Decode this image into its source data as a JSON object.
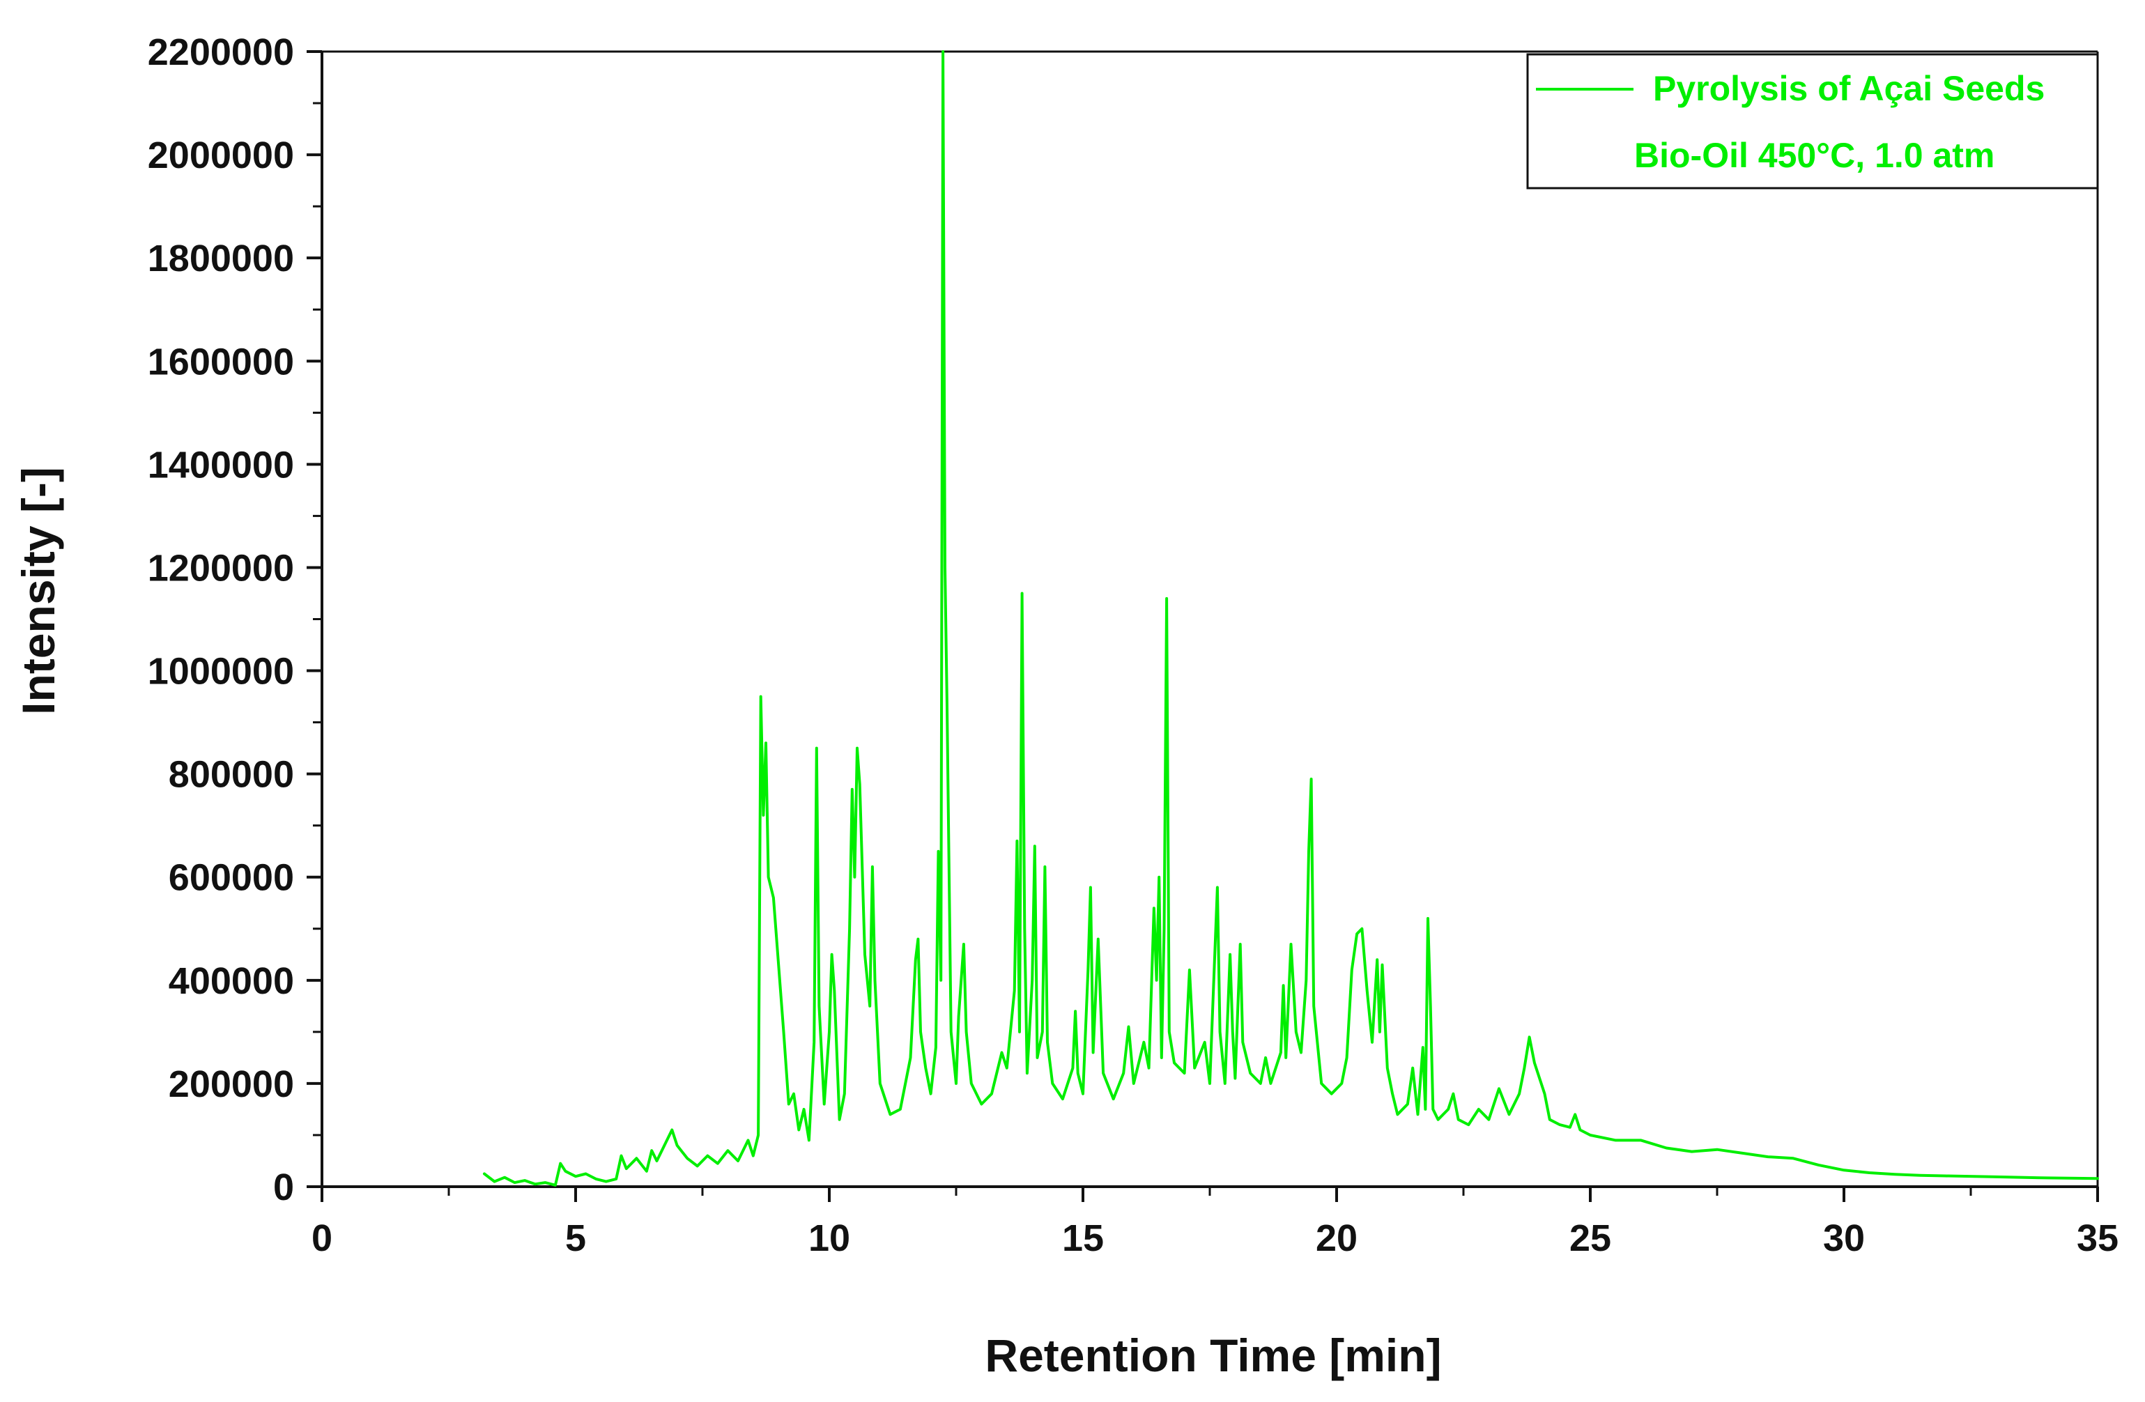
{
  "chart_data": {
    "type": "line",
    "title": "",
    "xlabel": "Retention Time [min]",
    "ylabel": "Intensity [-]",
    "xlim": [
      0,
      35
    ],
    "ylim": [
      0,
      2200000
    ],
    "x_ticks": [
      0,
      5,
      10,
      15,
      20,
      25,
      30,
      35
    ],
    "x_tick_labels": [
      "0",
      "5",
      "10",
      "15",
      "20",
      "25",
      "30",
      "35"
    ],
    "y_ticks": [
      0,
      200000,
      400000,
      600000,
      800000,
      1000000,
      1200000,
      1400000,
      1600000,
      1800000,
      2000000,
      2200000
    ],
    "y_tick_labels": [
      "0",
      "200000",
      "400000",
      "600000",
      "800000",
      "1000000",
      "1200000",
      "1400000",
      "1600000",
      "1800000",
      "2000000",
      "2200000"
    ],
    "grid": false,
    "legend_position": "top-right",
    "colors": {
      "series": "#00ee00",
      "axis": "#111111",
      "background": "#ffffff"
    },
    "series": [
      {
        "name": "Pyrolysis of Açai Seeds",
        "legend_subtitle": "Bio-Oil 450°C, 1.0 atm",
        "points": [
          [
            3.2,
            25000
          ],
          [
            3.4,
            10000
          ],
          [
            3.6,
            18000
          ],
          [
            3.8,
            8000
          ],
          [
            4.0,
            12000
          ],
          [
            4.2,
            5000
          ],
          [
            4.4,
            8000
          ],
          [
            4.6,
            3000
          ],
          [
            4.7,
            45000
          ],
          [
            4.8,
            30000
          ],
          [
            5.0,
            20000
          ],
          [
            5.2,
            25000
          ],
          [
            5.4,
            15000
          ],
          [
            5.6,
            10000
          ],
          [
            5.8,
            15000
          ],
          [
            5.9,
            60000
          ],
          [
            6.0,
            35000
          ],
          [
            6.2,
            55000
          ],
          [
            6.4,
            30000
          ],
          [
            6.5,
            70000
          ],
          [
            6.6,
            50000
          ],
          [
            6.8,
            90000
          ],
          [
            6.9,
            110000
          ],
          [
            7.0,
            80000
          ],
          [
            7.2,
            55000
          ],
          [
            7.4,
            40000
          ],
          [
            7.6,
            60000
          ],
          [
            7.8,
            45000
          ],
          [
            8.0,
            70000
          ],
          [
            8.2,
            50000
          ],
          [
            8.4,
            90000
          ],
          [
            8.5,
            60000
          ],
          [
            8.6,
            100000
          ],
          [
            8.65,
            950000
          ],
          [
            8.7,
            720000
          ],
          [
            8.75,
            860000
          ],
          [
            8.8,
            600000
          ],
          [
            8.9,
            560000
          ],
          [
            9.0,
            430000
          ],
          [
            9.1,
            300000
          ],
          [
            9.2,
            160000
          ],
          [
            9.3,
            180000
          ],
          [
            9.4,
            110000
          ],
          [
            9.5,
            150000
          ],
          [
            9.6,
            90000
          ],
          [
            9.7,
            280000
          ],
          [
            9.75,
            850000
          ],
          [
            9.8,
            350000
          ],
          [
            9.9,
            160000
          ],
          [
            10.0,
            300000
          ],
          [
            10.05,
            450000
          ],
          [
            10.1,
            380000
          ],
          [
            10.2,
            130000
          ],
          [
            10.3,
            180000
          ],
          [
            10.4,
            500000
          ],
          [
            10.45,
            770000
          ],
          [
            10.5,
            600000
          ],
          [
            10.55,
            850000
          ],
          [
            10.6,
            780000
          ],
          [
            10.7,
            450000
          ],
          [
            10.8,
            350000
          ],
          [
            10.85,
            620000
          ],
          [
            10.9,
            400000
          ],
          [
            11.0,
            200000
          ],
          [
            11.2,
            140000
          ],
          [
            11.4,
            150000
          ],
          [
            11.6,
            250000
          ],
          [
            11.7,
            440000
          ],
          [
            11.75,
            480000
          ],
          [
            11.8,
            300000
          ],
          [
            11.9,
            230000
          ],
          [
            12.0,
            180000
          ],
          [
            12.1,
            270000
          ],
          [
            12.15,
            650000
          ],
          [
            12.2,
            400000
          ],
          [
            12.24,
            2200000
          ],
          [
            12.28,
            1200000
          ],
          [
            12.32,
            940000
          ],
          [
            12.4,
            300000
          ],
          [
            12.5,
            200000
          ],
          [
            12.55,
            330000
          ],
          [
            12.65,
            470000
          ],
          [
            12.7,
            300000
          ],
          [
            12.8,
            200000
          ],
          [
            13.0,
            160000
          ],
          [
            13.2,
            180000
          ],
          [
            13.4,
            260000
          ],
          [
            13.5,
            230000
          ],
          [
            13.65,
            380000
          ],
          [
            13.7,
            670000
          ],
          [
            13.75,
            300000
          ],
          [
            13.8,
            1150000
          ],
          [
            13.85,
            500000
          ],
          [
            13.9,
            220000
          ],
          [
            14.0,
            400000
          ],
          [
            14.05,
            660000
          ],
          [
            14.1,
            250000
          ],
          [
            14.2,
            300000
          ],
          [
            14.25,
            620000
          ],
          [
            14.3,
            280000
          ],
          [
            14.4,
            200000
          ],
          [
            14.6,
            170000
          ],
          [
            14.8,
            230000
          ],
          [
            14.85,
            340000
          ],
          [
            14.9,
            220000
          ],
          [
            15.0,
            180000
          ],
          [
            15.1,
            420000
          ],
          [
            15.15,
            580000
          ],
          [
            15.2,
            260000
          ],
          [
            15.3,
            480000
          ],
          [
            15.4,
            220000
          ],
          [
            15.6,
            170000
          ],
          [
            15.8,
            220000
          ],
          [
            15.9,
            310000
          ],
          [
            16.0,
            200000
          ],
          [
            16.2,
            280000
          ],
          [
            16.3,
            230000
          ],
          [
            16.4,
            540000
          ],
          [
            16.45,
            400000
          ],
          [
            16.5,
            600000
          ],
          [
            16.55,
            250000
          ],
          [
            16.6,
            500000
          ],
          [
            16.65,
            1140000
          ],
          [
            16.7,
            300000
          ],
          [
            16.8,
            240000
          ],
          [
            17.0,
            220000
          ],
          [
            17.1,
            420000
          ],
          [
            17.2,
            230000
          ],
          [
            17.4,
            280000
          ],
          [
            17.5,
            200000
          ],
          [
            17.65,
            580000
          ],
          [
            17.7,
            300000
          ],
          [
            17.8,
            200000
          ],
          [
            17.9,
            450000
          ],
          [
            17.95,
            300000
          ],
          [
            18.0,
            210000
          ],
          [
            18.1,
            470000
          ],
          [
            18.15,
            280000
          ],
          [
            18.3,
            220000
          ],
          [
            18.5,
            200000
          ],
          [
            18.6,
            250000
          ],
          [
            18.7,
            200000
          ],
          [
            18.9,
            260000
          ],
          [
            18.95,
            390000
          ],
          [
            19.0,
            250000
          ],
          [
            19.1,
            470000
          ],
          [
            19.2,
            300000
          ],
          [
            19.3,
            260000
          ],
          [
            19.4,
            400000
          ],
          [
            19.45,
            650000
          ],
          [
            19.5,
            790000
          ],
          [
            19.55,
            350000
          ],
          [
            19.7,
            200000
          ],
          [
            19.9,
            180000
          ],
          [
            20.1,
            200000
          ],
          [
            20.2,
            250000
          ],
          [
            20.3,
            420000
          ],
          [
            20.4,
            490000
          ],
          [
            20.5,
            500000
          ],
          [
            20.6,
            380000
          ],
          [
            20.7,
            280000
          ],
          [
            20.8,
            440000
          ],
          [
            20.85,
            300000
          ],
          [
            20.9,
            430000
          ],
          [
            21.0,
            230000
          ],
          [
            21.1,
            180000
          ],
          [
            21.2,
            140000
          ],
          [
            21.4,
            160000
          ],
          [
            21.5,
            230000
          ],
          [
            21.6,
            140000
          ],
          [
            21.7,
            270000
          ],
          [
            21.75,
            150000
          ],
          [
            21.8,
            520000
          ],
          [
            21.85,
            350000
          ],
          [
            21.9,
            150000
          ],
          [
            22.0,
            130000
          ],
          [
            22.2,
            150000
          ],
          [
            22.3,
            180000
          ],
          [
            22.4,
            130000
          ],
          [
            22.6,
            120000
          ],
          [
            22.8,
            150000
          ],
          [
            23.0,
            130000
          ],
          [
            23.2,
            190000
          ],
          [
            23.4,
            140000
          ],
          [
            23.6,
            180000
          ],
          [
            23.7,
            230000
          ],
          [
            23.8,
            290000
          ],
          [
            23.9,
            240000
          ],
          [
            24.0,
            210000
          ],
          [
            24.1,
            180000
          ],
          [
            24.2,
            130000
          ],
          [
            24.4,
            120000
          ],
          [
            24.6,
            115000
          ],
          [
            24.7,
            140000
          ],
          [
            24.8,
            110000
          ],
          [
            25.0,
            100000
          ],
          [
            25.5,
            90000
          ],
          [
            26.0,
            90000
          ],
          [
            26.5,
            75000
          ],
          [
            27.0,
            68000
          ],
          [
            27.5,
            72000
          ],
          [
            28.0,
            65000
          ],
          [
            28.5,
            58000
          ],
          [
            29.0,
            55000
          ],
          [
            29.5,
            42000
          ],
          [
            30.0,
            32000
          ],
          [
            30.5,
            27000
          ],
          [
            31.0,
            24000
          ],
          [
            31.5,
            22000
          ],
          [
            32.0,
            21000
          ],
          [
            33.0,
            19000
          ],
          [
            34.0,
            17000
          ],
          [
            35.0,
            16000
          ]
        ]
      }
    ]
  }
}
